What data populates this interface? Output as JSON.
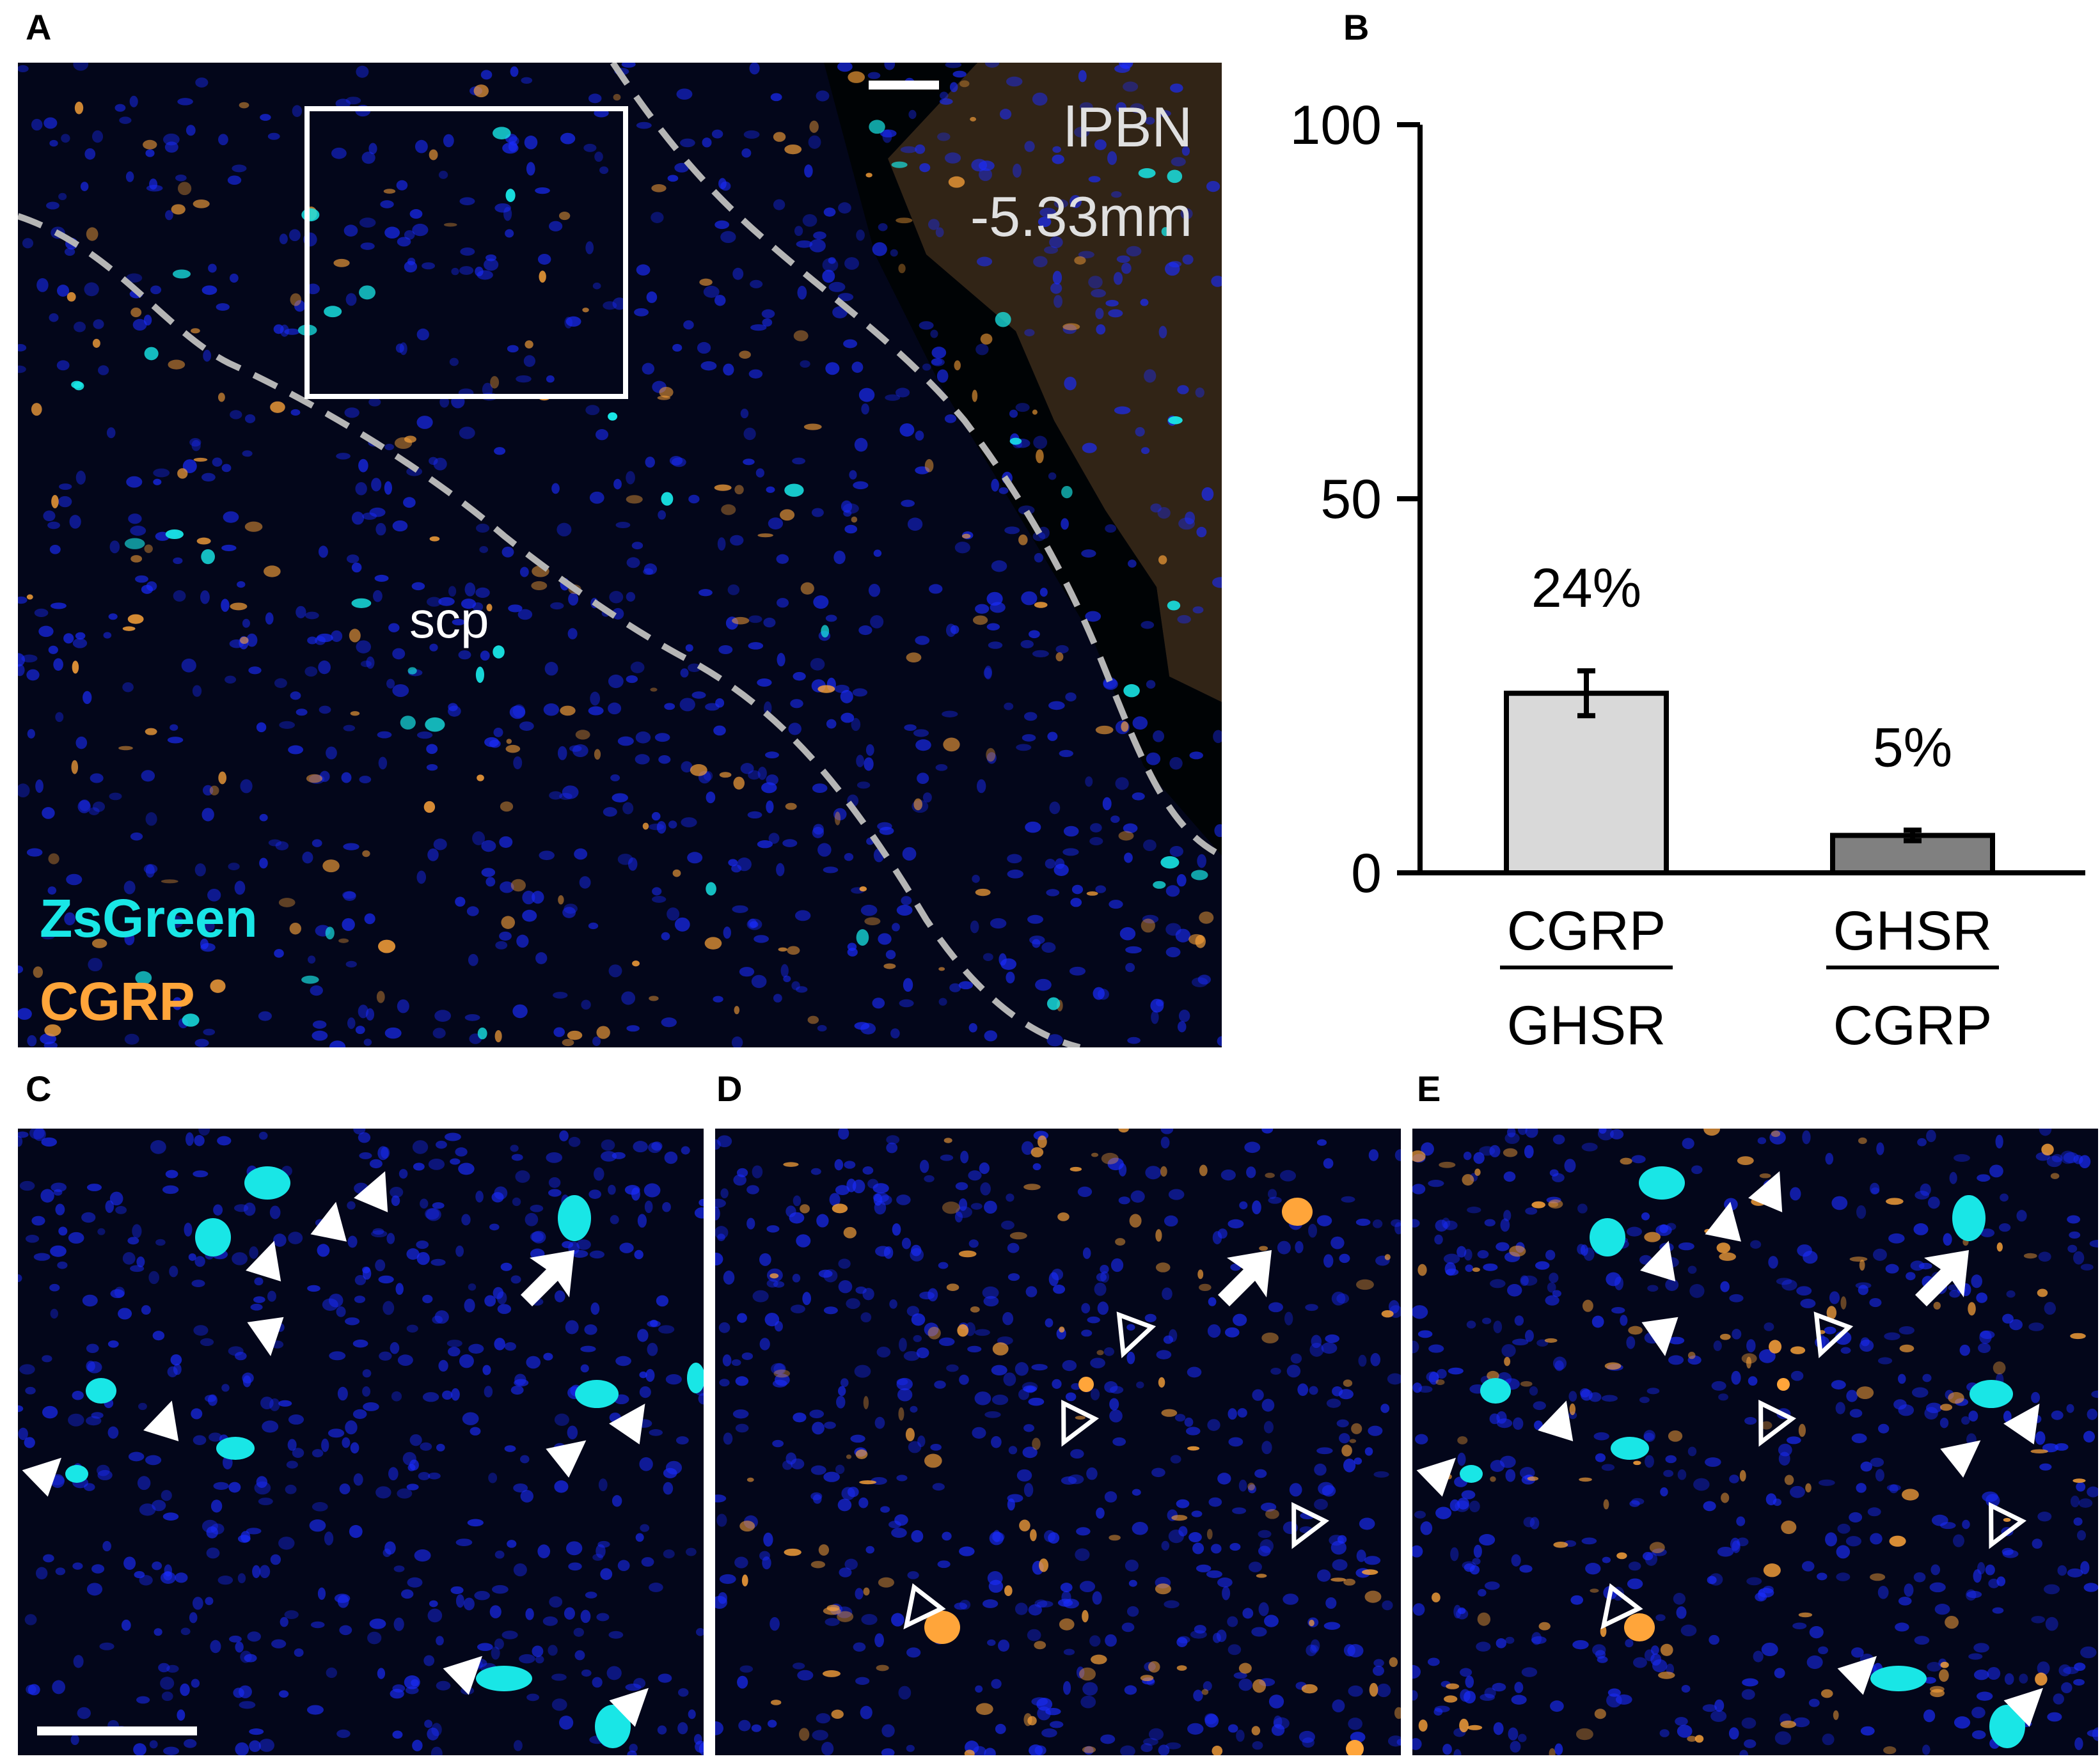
{
  "panels": {
    "a": "A",
    "b": "B",
    "c": "C",
    "d": "D",
    "e": "E"
  },
  "panel_a": {
    "region_label": "lPBN",
    "coordinate": "-5.33mm",
    "tract_label": "scp",
    "channel_1": "ZsGreen",
    "channel_2": "CGRP",
    "colors": {
      "background": "#03061a",
      "nuclei": "#1a2cff",
      "zsgreen": "#19e6e6",
      "cgrp": "#ffa53a",
      "boundary": "#b0b0b0"
    }
  },
  "chart_data": {
    "type": "bar",
    "categories": [
      "CGRP/GHSR",
      "GHSR/CGRP"
    ],
    "category_labels": [
      {
        "numerator": "CGRP",
        "denominator": "GHSR"
      },
      {
        "numerator": "GHSR",
        "denominator": "CGRP"
      }
    ],
    "values": [
      24,
      5
    ],
    "errors": [
      3,
      0.7
    ],
    "data_labels": [
      "24%",
      "5%"
    ],
    "bar_colors": [
      "#d9d9d9",
      "#808080"
    ],
    "ylim": [
      0,
      100
    ],
    "yticks": [
      0,
      50,
      100
    ],
    "ytick_labels": [
      "0",
      "50",
      "100"
    ],
    "xlabel": "",
    "ylabel": "",
    "title": "",
    "grid": false
  }
}
